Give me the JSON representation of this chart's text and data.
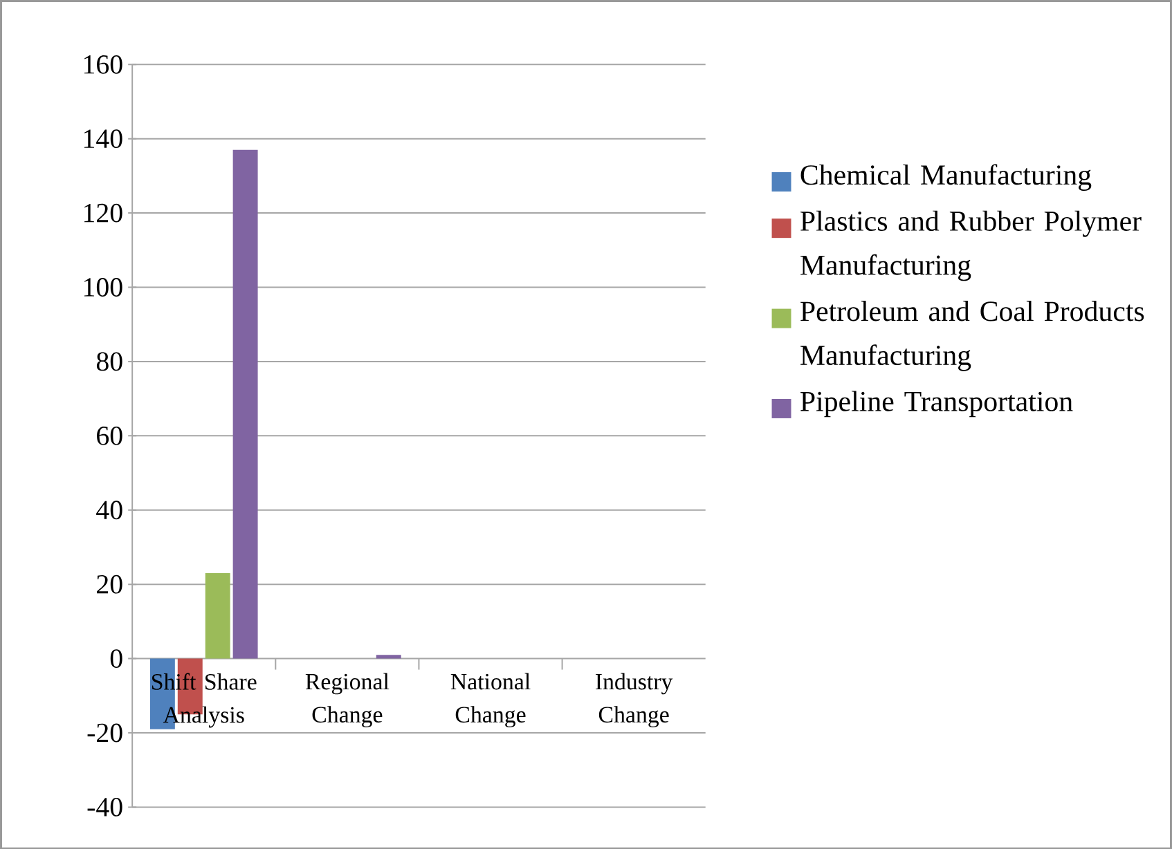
{
  "chart_data": {
    "type": "bar",
    "categories": [
      "Shift Share Analysis",
      "Regional Change",
      "National Change",
      "Industry Change"
    ],
    "series": [
      {
        "name": "Chemical Manufacturing",
        "color": "#4f81bd",
        "values": [
          -19,
          0,
          0,
          0
        ]
      },
      {
        "name": "Plastics and Rubber Polymer Manufacturing",
        "color": "#c0504d",
        "values": [
          -15,
          0,
          0,
          0
        ]
      },
      {
        "name": "Petroleum and Coal Products Manufacturing",
        "color": "#9bbb59",
        "values": [
          23,
          0,
          0,
          0
        ]
      },
      {
        "name": "Pipeline Transportation",
        "color": "#8064a2",
        "values": [
          137,
          1,
          0,
          0
        ]
      }
    ],
    "ylim": [
      -40,
      160
    ],
    "yticks": [
      -40,
      -20,
      0,
      20,
      40,
      60,
      80,
      100,
      120,
      140,
      160
    ],
    "grid": "y",
    "legend": "right"
  }
}
